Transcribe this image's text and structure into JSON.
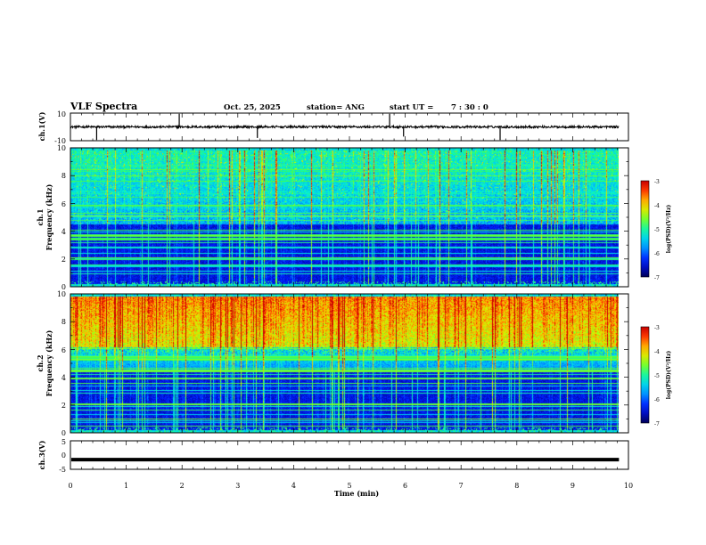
{
  "header": {
    "title": "VLF Spectra",
    "date": "Oct. 25, 2025",
    "station": "station= ANG",
    "start_label": "start  UT =",
    "start_time": "7 : 30 : 0"
  },
  "chart_data": [
    {
      "type": "line",
      "name": "ch1-waveform",
      "ylabel": "ch.1(V)",
      "ylim": [
        -10,
        10
      ],
      "yticks": [
        "10",
        "-10"
      ],
      "xlim": [
        0,
        10
      ],
      "trace_level": 0,
      "spikes": [
        {
          "x": 0.47,
          "y": -9.5
        },
        {
          "x": 1.95,
          "y": 9.5
        },
        {
          "x": 3.35,
          "y": -8
        },
        {
          "x": 5.72,
          "y": 9.5
        },
        {
          "x": 5.97,
          "y": -7
        },
        {
          "x": 7.7,
          "y": -9.5
        }
      ]
    },
    {
      "type": "heatmap",
      "name": "ch1-spectrogram",
      "ylabel_line1": "ch.1",
      "ylabel_line2": "Frequency (kHz)",
      "ylim": [
        0,
        10
      ],
      "yticks": [
        "0",
        "2",
        "4",
        "6",
        "8",
        "10"
      ],
      "xlim": [
        0,
        9.83
      ],
      "colorbar": {
        "label": "log(PSD)(V²/Hz)",
        "range": [
          -7,
          -3
        ],
        "ticks": [
          "-3",
          "-4",
          "-5",
          "-6",
          "-7"
        ]
      }
    },
    {
      "type": "heatmap",
      "name": "ch2-spectrogram",
      "ylabel_line1": "ch.2",
      "ylabel_line2": "Frequency (kHz)",
      "ylim": [
        0,
        10
      ],
      "yticks": [
        "0",
        "2",
        "4",
        "6",
        "8",
        "10"
      ],
      "xlim": [
        0,
        9.83
      ],
      "colorbar": {
        "label": "log(PSD)(V²/Hz)",
        "range": [
          -7,
          -3
        ],
        "ticks": [
          "-3",
          "-4",
          "-5",
          "-6",
          "-7"
        ]
      }
    },
    {
      "type": "line",
      "name": "ch3-waveform",
      "ylabel": "ch.3(V)",
      "ylim": [
        -5,
        5
      ],
      "yticks": [
        "5",
        "0",
        "-5"
      ],
      "xlim": [
        0,
        10
      ],
      "trace_level": -1.6
    }
  ],
  "xaxis": {
    "label": "Time  (min)",
    "range": [
      0,
      10
    ],
    "ticks": [
      "0",
      "1",
      "2",
      "3",
      "4",
      "5",
      "6",
      "7",
      "8",
      "9",
      "10"
    ]
  }
}
